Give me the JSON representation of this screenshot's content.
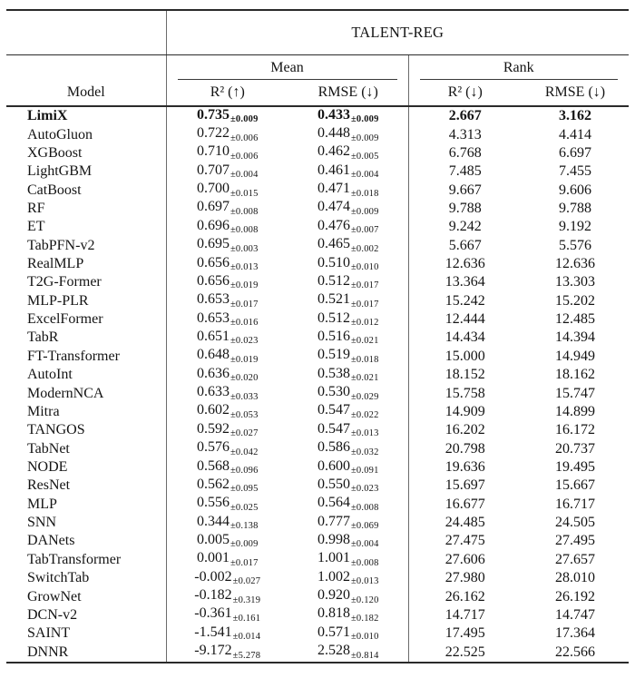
{
  "table": {
    "group_header": "TALENT-REG",
    "model_header": "Model",
    "col_groups": [
      {
        "label": "Mean"
      },
      {
        "label": "Rank"
      }
    ],
    "columns": [
      "R² (↑)",
      "RMSE (↓)",
      "R² (↓)",
      "RMSE (↓)"
    ],
    "rows": [
      {
        "model": "LimiX",
        "mean_r2": "0.735",
        "mean_r2_std": "±0.009",
        "mean_rmse": "0.433",
        "mean_rmse_std": "±0.009",
        "rank_r2": "2.667",
        "rank_rmse": "3.162",
        "best": true
      },
      {
        "model": "AutoGluon",
        "mean_r2": "0.722",
        "mean_r2_std": "±0.006",
        "mean_rmse": "0.448",
        "mean_rmse_std": "±0.009",
        "rank_r2": "4.313",
        "rank_rmse": "4.414"
      },
      {
        "model": "XGBoost",
        "mean_r2": "0.710",
        "mean_r2_std": "±0.006",
        "mean_rmse": "0.462",
        "mean_rmse_std": "±0.005",
        "rank_r2": "6.768",
        "rank_rmse": "6.697"
      },
      {
        "model": "LightGBM",
        "mean_r2": "0.707",
        "mean_r2_std": "±0.004",
        "mean_rmse": "0.461",
        "mean_rmse_std": "±0.004",
        "rank_r2": "7.485",
        "rank_rmse": "7.455"
      },
      {
        "model": "CatBoost",
        "mean_r2": "0.700",
        "mean_r2_std": "±0.015",
        "mean_rmse": "0.471",
        "mean_rmse_std": "±0.018",
        "rank_r2": "9.667",
        "rank_rmse": "9.606"
      },
      {
        "model": "RF",
        "mean_r2": "0.697",
        "mean_r2_std": "±0.008",
        "mean_rmse": "0.474",
        "mean_rmse_std": "±0.009",
        "rank_r2": "9.788",
        "rank_rmse": "9.788"
      },
      {
        "model": "ET",
        "mean_r2": "0.696",
        "mean_r2_std": "±0.008",
        "mean_rmse": "0.476",
        "mean_rmse_std": "±0.007",
        "rank_r2": "9.242",
        "rank_rmse": "9.192"
      },
      {
        "model": "TabPFN-v2",
        "mean_r2": "0.695",
        "mean_r2_std": "±0.003",
        "mean_rmse": "0.465",
        "mean_rmse_std": "±0.002",
        "rank_r2": "5.667",
        "rank_rmse": "5.576"
      },
      {
        "model": "RealMLP",
        "mean_r2": "0.656",
        "mean_r2_std": "±0.013",
        "mean_rmse": "0.510",
        "mean_rmse_std": "±0.010",
        "rank_r2": "12.636",
        "rank_rmse": "12.636"
      },
      {
        "model": "T2G-Former",
        "mean_r2": "0.656",
        "mean_r2_std": "±0.019",
        "mean_rmse": "0.512",
        "mean_rmse_std": "±0.017",
        "rank_r2": "13.364",
        "rank_rmse": "13.303"
      },
      {
        "model": "MLP-PLR",
        "mean_r2": "0.653",
        "mean_r2_std": "±0.017",
        "mean_rmse": "0.521",
        "mean_rmse_std": "±0.017",
        "rank_r2": "15.242",
        "rank_rmse": "15.202"
      },
      {
        "model": "ExcelFormer",
        "mean_r2": "0.653",
        "mean_r2_std": "±0.016",
        "mean_rmse": "0.512",
        "mean_rmse_std": "±0.012",
        "rank_r2": "12.444",
        "rank_rmse": "12.485"
      },
      {
        "model": "TabR",
        "mean_r2": "0.651",
        "mean_r2_std": "±0.023",
        "mean_rmse": "0.516",
        "mean_rmse_std": "±0.021",
        "rank_r2": "14.434",
        "rank_rmse": "14.394"
      },
      {
        "model": "FT-Transformer",
        "mean_r2": "0.648",
        "mean_r2_std": "±0.019",
        "mean_rmse": "0.519",
        "mean_rmse_std": "±0.018",
        "rank_r2": "15.000",
        "rank_rmse": "14.949"
      },
      {
        "model": "AutoInt",
        "mean_r2": "0.636",
        "mean_r2_std": "±0.020",
        "mean_rmse": "0.538",
        "mean_rmse_std": "±0.021",
        "rank_r2": "18.152",
        "rank_rmse": "18.162"
      },
      {
        "model": "ModernNCA",
        "mean_r2": "0.633",
        "mean_r2_std": "±0.033",
        "mean_rmse": "0.530",
        "mean_rmse_std": "±0.029",
        "rank_r2": "15.758",
        "rank_rmse": "15.747"
      },
      {
        "model": "Mitra",
        "mean_r2": "0.602",
        "mean_r2_std": "±0.053",
        "mean_rmse": "0.547",
        "mean_rmse_std": "±0.022",
        "rank_r2": "14.909",
        "rank_rmse": "14.899"
      },
      {
        "model": "TANGOS",
        "mean_r2": "0.592",
        "mean_r2_std": "±0.027",
        "mean_rmse": "0.547",
        "mean_rmse_std": "±0.013",
        "rank_r2": "16.202",
        "rank_rmse": "16.172"
      },
      {
        "model": "TabNet",
        "mean_r2": "0.576",
        "mean_r2_std": "±0.042",
        "mean_rmse": "0.586",
        "mean_rmse_std": "±0.032",
        "rank_r2": "20.798",
        "rank_rmse": "20.737"
      },
      {
        "model": "NODE",
        "mean_r2": "0.568",
        "mean_r2_std": "±0.096",
        "mean_rmse": "0.600",
        "mean_rmse_std": "±0.091",
        "rank_r2": "19.636",
        "rank_rmse": "19.495"
      },
      {
        "model": "ResNet",
        "mean_r2": "0.562",
        "mean_r2_std": "±0.095",
        "mean_rmse": "0.550",
        "mean_rmse_std": "±0.023",
        "rank_r2": "15.697",
        "rank_rmse": "15.667"
      },
      {
        "model": "MLP",
        "mean_r2": "0.556",
        "mean_r2_std": "±0.025",
        "mean_rmse": "0.564",
        "mean_rmse_std": "±0.008",
        "rank_r2": "16.677",
        "rank_rmse": "16.717"
      },
      {
        "model": "SNN",
        "mean_r2": "0.344",
        "mean_r2_std": "±0.138",
        "mean_rmse": "0.777",
        "mean_rmse_std": "±0.069",
        "rank_r2": "24.485",
        "rank_rmse": "24.505"
      },
      {
        "model": "DANets",
        "mean_r2": "0.005",
        "mean_r2_std": "±0.009",
        "mean_rmse": "0.998",
        "mean_rmse_std": "±0.004",
        "rank_r2": "27.475",
        "rank_rmse": "27.495"
      },
      {
        "model": "TabTransformer",
        "mean_r2": "0.001",
        "mean_r2_std": "±0.017",
        "mean_rmse": "1.001",
        "mean_rmse_std": "±0.008",
        "rank_r2": "27.606",
        "rank_rmse": "27.657"
      },
      {
        "model": "SwitchTab",
        "mean_r2": "-0.002",
        "mean_r2_std": "±0.027",
        "mean_rmse": "1.002",
        "mean_rmse_std": "±0.013",
        "rank_r2": "27.980",
        "rank_rmse": "28.010"
      },
      {
        "model": "GrowNet",
        "mean_r2": "-0.182",
        "mean_r2_std": "±0.319",
        "mean_rmse": "0.920",
        "mean_rmse_std": "±0.120",
        "rank_r2": "26.162",
        "rank_rmse": "26.192"
      },
      {
        "model": "DCN-v2",
        "mean_r2": "-0.361",
        "mean_r2_std": "±0.161",
        "mean_rmse": "0.818",
        "mean_rmse_std": "±0.182",
        "rank_r2": "14.717",
        "rank_rmse": "14.747"
      },
      {
        "model": "SAINT",
        "mean_r2": "-1.541",
        "mean_r2_std": "±0.014",
        "mean_rmse": "0.571",
        "mean_rmse_std": "±0.010",
        "rank_r2": "17.495",
        "rank_rmse": "17.364"
      },
      {
        "model": "DNNR",
        "mean_r2": "-9.172",
        "mean_r2_std": "±5.278",
        "mean_rmse": "2.528",
        "mean_rmse_std": "±0.814",
        "rank_r2": "22.525",
        "rank_rmse": "22.566"
      }
    ]
  }
}
